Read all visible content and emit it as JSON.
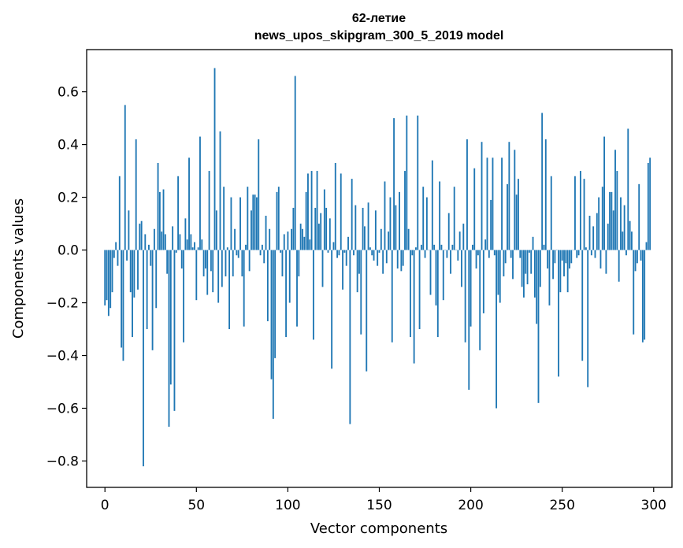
{
  "chart_data": {
    "type": "bar",
    "title_line1": "62-летие",
    "title_line2": "news_upos_skipgram_300_5_2019 model",
    "xlabel": "Vector components",
    "ylabel": "Components values",
    "xlim": [
      -10,
      310
    ],
    "ylim": [
      -0.9,
      0.76
    ],
    "xticks": [
      0,
      50,
      100,
      150,
      200,
      250,
      300
    ],
    "xtick_labels": [
      "0",
      "50",
      "100",
      "150",
      "200",
      "250",
      "300"
    ],
    "yticks": [
      -0.8,
      -0.6,
      -0.4,
      -0.2,
      0.0,
      0.2,
      0.4,
      0.6
    ],
    "ytick_labels": [
      "−0.8",
      "−0.6",
      "−0.4",
      "−0.2",
      "0.0",
      "0.2",
      "0.4",
      "0.6"
    ],
    "bar_color": "#1f77b4",
    "values": [
      -0.21,
      -0.19,
      -0.25,
      -0.22,
      -0.16,
      -0.03,
      0.03,
      -0.06,
      0.28,
      -0.37,
      -0.42,
      0.55,
      -0.04,
      0.15,
      -0.16,
      -0.33,
      -0.18,
      0.42,
      -0.15,
      0.1,
      0.11,
      -0.82,
      0.06,
      -0.3,
      0.02,
      -0.06,
      -0.38,
      0.08,
      -0.22,
      0.33,
      0.22,
      0.07,
      0.23,
      0.06,
      -0.09,
      -0.67,
      -0.51,
      0.09,
      -0.61,
      -0.01,
      0.28,
      0.06,
      -0.07,
      -0.35,
      0.12,
      0.04,
      0.35,
      0.06,
      0.01,
      0.03,
      -0.19,
      0.01,
      0.43,
      0.04,
      -0.1,
      -0.07,
      -0.17,
      0.3,
      -0.08,
      -0.16,
      0.69,
      0.15,
      -0.2,
      0.45,
      -0.14,
      0.24,
      -0.1,
      0.01,
      -0.3,
      0.2,
      -0.1,
      0.08,
      -0.02,
      -0.03,
      0.2,
      -0.1,
      -0.29,
      0.02,
      0.24,
      -0.08,
      0.15,
      0.21,
      0.21,
      0.2,
      0.42,
      -0.02,
      0.02,
      -0.05,
      0.13,
      -0.27,
      0.08,
      -0.49,
      -0.64,
      -0.41,
      0.22,
      0.24,
      -0.01,
      -0.1,
      0.06,
      -0.33,
      0.07,
      -0.2,
      0.08,
      0.16,
      0.66,
      -0.29,
      -0.1,
      0.1,
      0.08,
      0.05,
      0.22,
      0.29,
      0.04,
      0.3,
      -0.34,
      0.16,
      0.3,
      0.1,
      0.14,
      -0.14,
      0.23,
      0.16,
      -0.01,
      0.12,
      -0.45,
      0.03,
      0.33,
      -0.03,
      -0.02,
      0.29,
      -0.15,
      -0.01,
      -0.06,
      0.05,
      -0.66,
      0.27,
      -0.02,
      0.17,
      -0.16,
      -0.09,
      -0.32,
      0.16,
      0.09,
      -0.46,
      0.18,
      0.01,
      -0.02,
      -0.04,
      0.15,
      -0.06,
      -0.01,
      0.08,
      -0.09,
      0.26,
      -0.05,
      0.07,
      0.2,
      -0.35,
      0.5,
      0.17,
      -0.07,
      0.22,
      -0.08,
      -0.06,
      0.3,
      0.51,
      0.08,
      -0.33,
      -0.02,
      -0.43,
      0.01,
      0.51,
      -0.3,
      0.02,
      0.24,
      -0.03,
      0.2,
      0.0,
      -0.17,
      0.34,
      0.02,
      -0.21,
      -0.33,
      0.26,
      0.02,
      -0.19,
      0.0,
      -0.03,
      0.14,
      -0.09,
      0.02,
      0.24,
      0.0,
      -0.04,
      0.07,
      -0.14,
      0.1,
      -0.35,
      0.42,
      -0.53,
      -0.29,
      0.02,
      0.31,
      -0.07,
      -0.02,
      -0.38,
      0.41,
      -0.24,
      0.04,
      0.35,
      -0.03,
      0.19,
      0.35,
      -0.02,
      -0.6,
      -0.17,
      -0.2,
      0.35,
      -0.1,
      -0.05,
      0.25,
      0.41,
      -0.03,
      -0.11,
      0.38,
      0.21,
      0.27,
      -0.03,
      -0.14,
      -0.18,
      -0.09,
      -0.13,
      -0.01,
      -0.09,
      0.05,
      -0.18,
      -0.28,
      -0.58,
      -0.14,
      0.52,
      0.02,
      0.42,
      -0.07,
      -0.21,
      0.28,
      -0.11,
      -0.05,
      0.0,
      -0.48,
      -0.16,
      -0.04,
      -0.1,
      -0.05,
      -0.16,
      -0.07,
      -0.05,
      0.0,
      0.28,
      -0.03,
      -0.02,
      0.3,
      -0.42,
      0.27,
      0.01,
      -0.52,
      0.13,
      -0.02,
      0.09,
      -0.03,
      0.14,
      0.2,
      -0.07,
      0.24,
      0.43,
      -0.09,
      0.1,
      0.22,
      0.22,
      0.15,
      0.38,
      0.3,
      -0.12,
      0.2,
      0.07,
      0.17,
      -0.02,
      0.46,
      0.11,
      0.07,
      -0.32,
      -0.08,
      -0.05,
      0.25,
      -0.04,
      -0.35,
      -0.34,
      0.03,
      0.33,
      0.35
    ]
  }
}
